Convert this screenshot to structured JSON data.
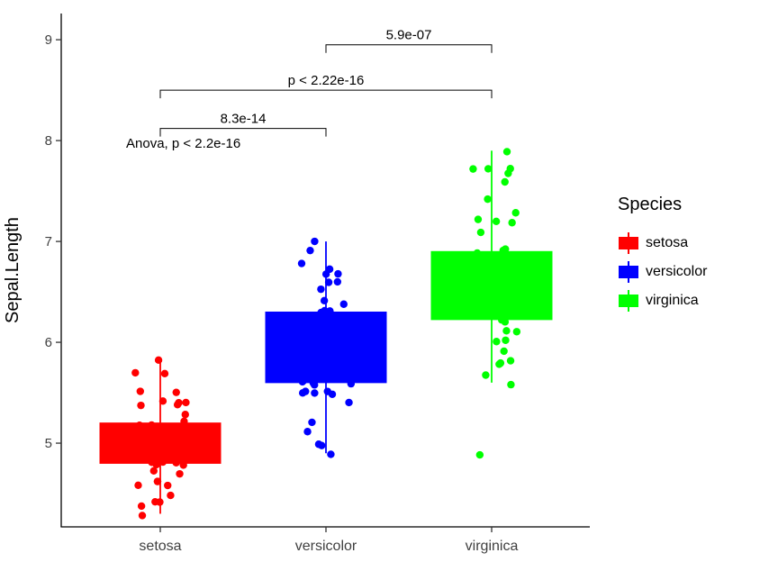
{
  "chart_data": {
    "type": "boxplot",
    "title": "",
    "xlabel": "",
    "ylabel": "Sepal.Length",
    "categories": [
      "setosa",
      "versicolor",
      "virginica"
    ],
    "y_ticks": [
      5,
      6,
      7,
      8,
      9
    ],
    "ylim": [
      4.17,
      9.26
    ],
    "grid": false,
    "legend_position": "right",
    "series": [
      {
        "name": "setosa",
        "color": "#FF0000",
        "whisker_low": 4.3,
        "q1": 4.8,
        "median": 5.0,
        "q3": 5.2,
        "whisker_high": 5.8,
        "outliers": [],
        "points": [
          5.1,
          4.9,
          4.7,
          4.6,
          5.0,
          5.4,
          4.6,
          5.0,
          4.4,
          4.9,
          5.4,
          4.8,
          4.8,
          4.3,
          5.8,
          5.7,
          5.4,
          5.1,
          5.7,
          5.1,
          5.4,
          5.1,
          4.6,
          5.1,
          4.8,
          5.0,
          5.0,
          5.2,
          5.2,
          4.7,
          4.8,
          5.4,
          5.2,
          5.5,
          4.9,
          5.0,
          5.5,
          4.9,
          4.4,
          5.1,
          5.0,
          4.5,
          4.4,
          5.0,
          5.1,
          4.8,
          5.1,
          4.6,
          5.3,
          5.0
        ]
      },
      {
        "name": "versicolor",
        "color": "#0000FF",
        "whisker_low": 4.9,
        "q1": 5.6,
        "median": 5.9,
        "q3": 6.3,
        "whisker_high": 7.0,
        "outliers": [],
        "points": [
          7.0,
          6.4,
          6.9,
          5.5,
          6.5,
          5.7,
          6.3,
          4.9,
          6.6,
          5.2,
          5.0,
          5.9,
          6.0,
          6.1,
          5.6,
          6.7,
          5.6,
          5.8,
          6.2,
          5.6,
          5.9,
          6.1,
          6.3,
          6.1,
          6.4,
          6.6,
          6.8,
          6.7,
          6.0,
          5.7,
          5.5,
          5.5,
          5.8,
          6.0,
          5.4,
          6.0,
          6.7,
          6.3,
          5.6,
          5.5,
          5.5,
          6.1,
          5.8,
          5.0,
          5.6,
          5.7,
          5.7,
          6.2,
          5.1,
          5.7
        ]
      },
      {
        "name": "virginica",
        "color": "#00FF00",
        "whisker_low": 5.6,
        "q1": 6.225,
        "median": 6.5,
        "q3": 6.9,
        "whisker_high": 7.9,
        "outliers": [
          4.9
        ],
        "points": [
          6.3,
          5.8,
          7.1,
          6.3,
          6.5,
          7.6,
          4.9,
          7.3,
          6.7,
          7.2,
          6.5,
          6.4,
          6.8,
          5.7,
          5.8,
          6.4,
          6.5,
          7.7,
          7.7,
          6.0,
          6.9,
          5.6,
          7.7,
          6.3,
          6.7,
          7.2,
          6.2,
          6.1,
          6.4,
          7.2,
          7.4,
          7.9,
          6.4,
          6.3,
          6.1,
          7.7,
          6.3,
          6.4,
          6.0,
          6.9,
          6.7,
          6.9,
          5.8,
          6.8,
          6.7,
          6.7,
          6.3,
          6.5,
          6.2,
          5.9
        ]
      }
    ],
    "annotations": [
      {
        "type": "bracket",
        "label": "5.9e-07",
        "from": "versicolor",
        "to": "virginica",
        "y": 8.95
      },
      {
        "type": "bracket",
        "label": "p < 2.22e-16",
        "from": "setosa",
        "to": "virginica",
        "y": 8.5
      },
      {
        "type": "bracket",
        "label": "8.3e-14",
        "from": "setosa",
        "to": "versicolor",
        "y": 8.12
      },
      {
        "type": "text",
        "label": "Anova, p < 2.2e-16",
        "x": "setosa",
        "y": 7.93,
        "anchor": "start",
        "dx": -38
      }
    ],
    "legend": {
      "title": "Species",
      "entries": [
        {
          "label": "setosa",
          "color": "#FF0000"
        },
        {
          "label": "versicolor",
          "color": "#0000FF"
        },
        {
          "label": "virginica",
          "color": "#00FF00"
        }
      ]
    }
  }
}
